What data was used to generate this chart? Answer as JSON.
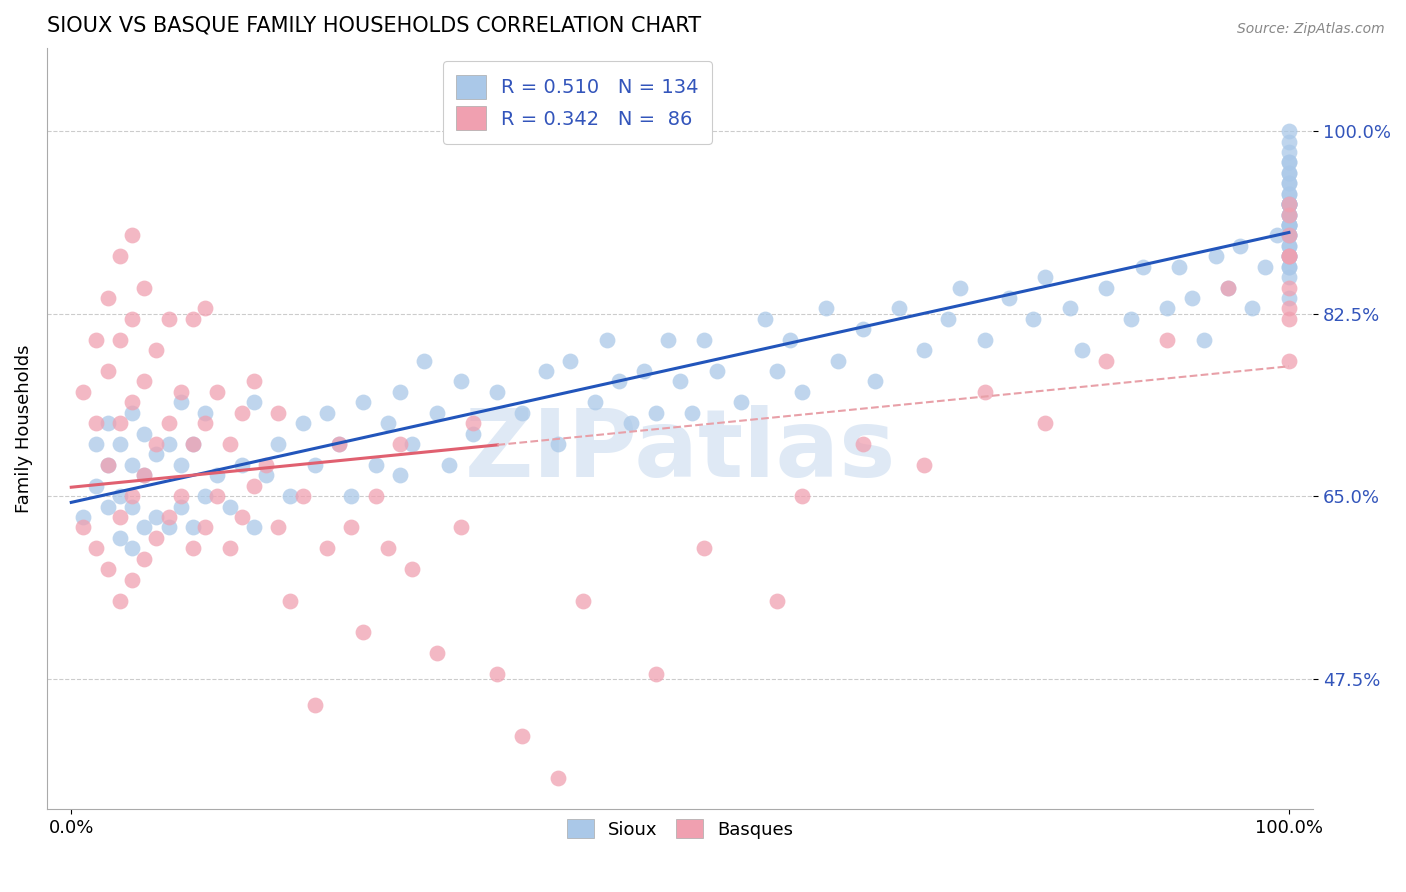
{
  "title": "SIOUX VS BASQUE FAMILY HOUSEHOLDS CORRELATION CHART",
  "source": "Source: ZipAtlas.com",
  "ylabel": "Family Households",
  "xlim": [
    -0.02,
    1.02
  ],
  "ylim": [
    0.35,
    1.08
  ],
  "yticks": [
    0.475,
    0.65,
    0.825,
    1.0
  ],
  "ytick_labels": [
    "47.5%",
    "65.0%",
    "82.5%",
    "100.0%"
  ],
  "sioux_R": 0.51,
  "sioux_N": 134,
  "basque_R": 0.342,
  "basque_N": 86,
  "sioux_color": "#aac8e8",
  "basque_color": "#f0a0b0",
  "sioux_line_color": "#2255bb",
  "basque_line_solid_color": "#e06070",
  "basque_line_dash_color": "#e8a0a8",
  "watermark_color": "#c5d8ee",
  "legend_sioux_color": "#aac8e8",
  "legend_basque_color": "#f0a0b0",
  "sioux_x": [
    0.01,
    0.02,
    0.02,
    0.03,
    0.03,
    0.03,
    0.04,
    0.04,
    0.04,
    0.05,
    0.05,
    0.05,
    0.05,
    0.06,
    0.06,
    0.06,
    0.07,
    0.07,
    0.08,
    0.08,
    0.09,
    0.09,
    0.09,
    0.1,
    0.1,
    0.11,
    0.11,
    0.12,
    0.13,
    0.14,
    0.15,
    0.15,
    0.16,
    0.17,
    0.18,
    0.19,
    0.2,
    0.21,
    0.22,
    0.23,
    0.24,
    0.25,
    0.26,
    0.27,
    0.27,
    0.28,
    0.29,
    0.3,
    0.31,
    0.32,
    0.33,
    0.35,
    0.37,
    0.39,
    0.4,
    0.41,
    0.43,
    0.44,
    0.45,
    0.46,
    0.47,
    0.48,
    0.49,
    0.5,
    0.51,
    0.52,
    0.53,
    0.55,
    0.57,
    0.58,
    0.59,
    0.6,
    0.62,
    0.63,
    0.65,
    0.66,
    0.68,
    0.7,
    0.72,
    0.73,
    0.75,
    0.77,
    0.79,
    0.8,
    0.82,
    0.83,
    0.85,
    0.87,
    0.88,
    0.9,
    0.91,
    0.92,
    0.93,
    0.94,
    0.95,
    0.96,
    0.97,
    0.98,
    0.99,
    1.0,
    1.0,
    1.0,
    1.0,
    1.0,
    1.0,
    1.0,
    1.0,
    1.0,
    1.0,
    1.0,
    1.0,
    1.0,
    1.0,
    1.0,
    1.0,
    1.0,
    1.0,
    1.0,
    1.0,
    1.0,
    1.0,
    1.0,
    1.0,
    1.0,
    1.0,
    1.0,
    1.0,
    1.0,
    1.0,
    1.0,
    1.0,
    1.0,
    1.0,
    1.0
  ],
  "sioux_y": [
    0.63,
    0.66,
    0.7,
    0.64,
    0.68,
    0.72,
    0.61,
    0.65,
    0.7,
    0.6,
    0.64,
    0.68,
    0.73,
    0.62,
    0.67,
    0.71,
    0.63,
    0.69,
    0.62,
    0.7,
    0.64,
    0.68,
    0.74,
    0.62,
    0.7,
    0.65,
    0.73,
    0.67,
    0.64,
    0.68,
    0.62,
    0.74,
    0.67,
    0.7,
    0.65,
    0.72,
    0.68,
    0.73,
    0.7,
    0.65,
    0.74,
    0.68,
    0.72,
    0.67,
    0.75,
    0.7,
    0.78,
    0.73,
    0.68,
    0.76,
    0.71,
    0.75,
    0.73,
    0.77,
    0.7,
    0.78,
    0.74,
    0.8,
    0.76,
    0.72,
    0.77,
    0.73,
    0.8,
    0.76,
    0.73,
    0.8,
    0.77,
    0.74,
    0.82,
    0.77,
    0.8,
    0.75,
    0.83,
    0.78,
    0.81,
    0.76,
    0.83,
    0.79,
    0.82,
    0.85,
    0.8,
    0.84,
    0.82,
    0.86,
    0.83,
    0.79,
    0.85,
    0.82,
    0.87,
    0.83,
    0.87,
    0.84,
    0.8,
    0.88,
    0.85,
    0.89,
    0.83,
    0.87,
    0.9,
    0.86,
    0.9,
    0.93,
    0.88,
    0.84,
    0.91,
    0.87,
    0.93,
    0.89,
    0.95,
    0.91,
    0.87,
    0.93,
    0.9,
    0.96,
    0.92,
    0.88,
    0.94,
    0.91,
    0.97,
    0.93,
    0.89,
    0.95,
    0.92,
    0.98,
    0.9,
    0.96,
    0.93,
    0.99,
    0.91,
    0.97,
    0.94,
    1.0,
    0.92,
    0.88
  ],
  "basque_x": [
    0.01,
    0.01,
    0.02,
    0.02,
    0.02,
    0.03,
    0.03,
    0.03,
    0.03,
    0.04,
    0.04,
    0.04,
    0.04,
    0.04,
    0.05,
    0.05,
    0.05,
    0.05,
    0.05,
    0.06,
    0.06,
    0.06,
    0.06,
    0.07,
    0.07,
    0.07,
    0.08,
    0.08,
    0.08,
    0.09,
    0.09,
    0.1,
    0.1,
    0.1,
    0.11,
    0.11,
    0.11,
    0.12,
    0.12,
    0.13,
    0.13,
    0.14,
    0.14,
    0.15,
    0.15,
    0.16,
    0.17,
    0.17,
    0.18,
    0.19,
    0.2,
    0.21,
    0.22,
    0.23,
    0.24,
    0.25,
    0.26,
    0.27,
    0.28,
    0.3,
    0.32,
    0.33,
    0.35,
    0.37,
    0.4,
    0.42,
    0.48,
    0.52,
    0.58,
    0.6,
    0.65,
    0.7,
    0.75,
    0.8,
    0.85,
    0.9,
    0.95,
    1.0,
    1.0,
    1.0,
    1.0,
    1.0,
    1.0,
    1.0,
    1.0,
    1.0
  ],
  "basque_y": [
    0.62,
    0.75,
    0.6,
    0.72,
    0.8,
    0.58,
    0.68,
    0.77,
    0.84,
    0.55,
    0.63,
    0.72,
    0.8,
    0.88,
    0.57,
    0.65,
    0.74,
    0.82,
    0.9,
    0.59,
    0.67,
    0.76,
    0.85,
    0.61,
    0.7,
    0.79,
    0.63,
    0.72,
    0.82,
    0.65,
    0.75,
    0.6,
    0.7,
    0.82,
    0.62,
    0.72,
    0.83,
    0.65,
    0.75,
    0.6,
    0.7,
    0.63,
    0.73,
    0.66,
    0.76,
    0.68,
    0.62,
    0.73,
    0.55,
    0.65,
    0.45,
    0.6,
    0.7,
    0.62,
    0.52,
    0.65,
    0.6,
    0.7,
    0.58,
    0.5,
    0.62,
    0.72,
    0.48,
    0.42,
    0.38,
    0.55,
    0.48,
    0.6,
    0.55,
    0.65,
    0.7,
    0.68,
    0.75,
    0.72,
    0.78,
    0.8,
    0.85,
    0.78,
    0.83,
    0.88,
    0.82,
    0.88,
    0.92,
    0.85,
    0.9,
    0.93
  ]
}
